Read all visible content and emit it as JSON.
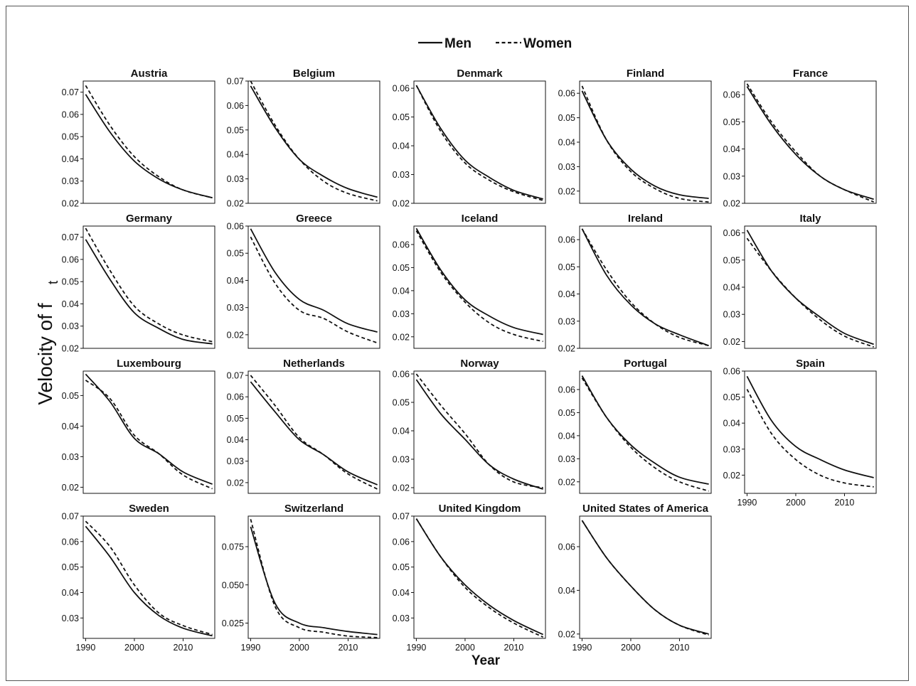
{
  "legend": {
    "men_label": "Men",
    "women_label": "Women"
  },
  "axis": {
    "xlabel": "Year",
    "ylabel_main": "Velocity of f",
    "ylabel_sub": "t"
  },
  "chart_data": {
    "type": "line",
    "grid": false,
    "legend_position": "top-center",
    "x_ticks": [
      1990,
      2000,
      2010
    ],
    "xlim": [
      1989.5,
      2016.5
    ],
    "series_names": [
      "Men",
      "Women"
    ],
    "panels": [
      {
        "title": "Austria",
        "ylim": [
          0.02,
          0.075
        ],
        "yticks": [
          "0.02",
          "0.03",
          "0.04",
          "0.05",
          "0.06",
          "0.07"
        ],
        "men": [
          [
            1990,
            0.069
          ],
          [
            1995,
            0.052
          ],
          [
            2000,
            0.039
          ],
          [
            2005,
            0.031
          ],
          [
            2010,
            0.026
          ],
          [
            2016,
            0.0225
          ]
        ],
        "women": [
          [
            1990,
            0.073
          ],
          [
            1995,
            0.055
          ],
          [
            2000,
            0.041
          ],
          [
            2005,
            0.032
          ],
          [
            2010,
            0.026
          ],
          [
            2016,
            0.0225
          ]
        ]
      },
      {
        "title": "Belgium",
        "ylim": [
          0.02,
          0.07
        ],
        "yticks": [
          "0.02",
          "0.03",
          "0.04",
          "0.05",
          "0.06",
          "0.07"
        ],
        "men": [
          [
            1990,
            0.068
          ],
          [
            1995,
            0.051
          ],
          [
            2000,
            0.038
          ],
          [
            2005,
            0.031
          ],
          [
            2010,
            0.026
          ],
          [
            2016,
            0.0225
          ]
        ],
        "women": [
          [
            1990,
            0.07
          ],
          [
            1995,
            0.052
          ],
          [
            2000,
            0.038
          ],
          [
            2005,
            0.029
          ],
          [
            2010,
            0.024
          ],
          [
            2016,
            0.021
          ]
        ]
      },
      {
        "title": "Denmark",
        "ylim": [
          0.02,
          0.0625
        ],
        "yticks": [
          "0.02",
          "0.03",
          "0.04",
          "0.05",
          "0.06"
        ],
        "men": [
          [
            1990,
            0.061
          ],
          [
            1995,
            0.046
          ],
          [
            2000,
            0.035
          ],
          [
            2005,
            0.029
          ],
          [
            2010,
            0.0245
          ],
          [
            2016,
            0.0215
          ]
        ],
        "women": [
          [
            1990,
            0.061
          ],
          [
            1995,
            0.045
          ],
          [
            2000,
            0.034
          ],
          [
            2005,
            0.028
          ],
          [
            2010,
            0.024
          ],
          [
            2016,
            0.021
          ]
        ]
      },
      {
        "title": "Finland",
        "ylim": [
          0.015,
          0.065
        ],
        "yticks": [
          "0.02",
          "0.03",
          "0.04",
          "0.05",
          "0.06"
        ],
        "men": [
          [
            1990,
            0.061
          ],
          [
            1995,
            0.041
          ],
          [
            2000,
            0.029
          ],
          [
            2005,
            0.022
          ],
          [
            2010,
            0.0185
          ],
          [
            2016,
            0.017
          ]
        ],
        "women": [
          [
            1990,
            0.063
          ],
          [
            1995,
            0.041
          ],
          [
            2000,
            0.028
          ],
          [
            2005,
            0.021
          ],
          [
            2010,
            0.017
          ],
          [
            2016,
            0.0155
          ]
        ]
      },
      {
        "title": "France",
        "ylim": [
          0.02,
          0.065
        ],
        "yticks": [
          "0.02",
          "0.03",
          "0.04",
          "0.05",
          "0.06"
        ],
        "men": [
          [
            1990,
            0.063
          ],
          [
            1995,
            0.049
          ],
          [
            2000,
            0.038
          ],
          [
            2005,
            0.03
          ],
          [
            2010,
            0.025
          ],
          [
            2016,
            0.0215
          ]
        ],
        "women": [
          [
            1990,
            0.064
          ],
          [
            1995,
            0.05
          ],
          [
            2000,
            0.039
          ],
          [
            2005,
            0.03
          ],
          [
            2010,
            0.025
          ],
          [
            2016,
            0.0205
          ]
        ]
      },
      {
        "title": "Germany",
        "ylim": [
          0.02,
          0.075
        ],
        "yticks": [
          "0.02",
          "0.03",
          "0.04",
          "0.05",
          "0.06",
          "0.07"
        ],
        "men": [
          [
            1990,
            0.069
          ],
          [
            1995,
            0.051
          ],
          [
            2000,
            0.036
          ],
          [
            2005,
            0.029
          ],
          [
            2010,
            0.024
          ],
          [
            2016,
            0.022
          ]
        ],
        "women": [
          [
            1990,
            0.074
          ],
          [
            1995,
            0.055
          ],
          [
            2000,
            0.039
          ],
          [
            2005,
            0.031
          ],
          [
            2010,
            0.026
          ],
          [
            2016,
            0.023
          ]
        ]
      },
      {
        "title": "Greece",
        "ylim": [
          0.015,
          0.06
        ],
        "yticks": [
          "0.02",
          "0.03",
          "0.04",
          "0.05",
          "0.06"
        ],
        "men": [
          [
            1990,
            0.059
          ],
          [
            1995,
            0.043
          ],
          [
            2000,
            0.033
          ],
          [
            2005,
            0.029
          ],
          [
            2010,
            0.024
          ],
          [
            2016,
            0.021
          ]
        ],
        "women": [
          [
            1990,
            0.056
          ],
          [
            1995,
            0.039
          ],
          [
            2000,
            0.029
          ],
          [
            2005,
            0.026
          ],
          [
            2010,
            0.021
          ],
          [
            2016,
            0.017
          ]
        ]
      },
      {
        "title": "Iceland",
        "ylim": [
          0.015,
          0.068
        ],
        "yticks": [
          "0.02",
          "0.03",
          "0.04",
          "0.05",
          "0.06"
        ],
        "men": [
          [
            1990,
            0.067
          ],
          [
            1995,
            0.049
          ],
          [
            2000,
            0.036
          ],
          [
            2005,
            0.029
          ],
          [
            2010,
            0.024
          ],
          [
            2016,
            0.021
          ]
        ],
        "women": [
          [
            1990,
            0.066
          ],
          [
            1995,
            0.048
          ],
          [
            2000,
            0.035
          ],
          [
            2005,
            0.026
          ],
          [
            2010,
            0.021
          ],
          [
            2016,
            0.018
          ]
        ]
      },
      {
        "title": "Ireland",
        "ylim": [
          0.02,
          0.065
        ],
        "yticks": [
          "0.02",
          "0.03",
          "0.04",
          "0.05",
          "0.06"
        ],
        "men": [
          [
            1990,
            0.064
          ],
          [
            1995,
            0.047
          ],
          [
            2000,
            0.036
          ],
          [
            2005,
            0.029
          ],
          [
            2010,
            0.025
          ],
          [
            2016,
            0.021
          ]
        ],
        "women": [
          [
            1990,
            0.064
          ],
          [
            1995,
            0.049
          ],
          [
            2000,
            0.037
          ],
          [
            2005,
            0.029
          ],
          [
            2010,
            0.024
          ],
          [
            2016,
            0.021
          ]
        ]
      },
      {
        "title": "Italy",
        "ylim": [
          0.0175,
          0.0625
        ],
        "yticks": [
          "0.02",
          "0.03",
          "0.04",
          "0.05",
          "0.06"
        ],
        "men": [
          [
            1990,
            0.061
          ],
          [
            1995,
            0.046
          ],
          [
            2000,
            0.036
          ],
          [
            2005,
            0.029
          ],
          [
            2010,
            0.023
          ],
          [
            2016,
            0.019
          ]
        ],
        "women": [
          [
            1990,
            0.058
          ],
          [
            1995,
            0.046
          ],
          [
            2000,
            0.036
          ],
          [
            2005,
            0.028
          ],
          [
            2010,
            0.022
          ],
          [
            2016,
            0.018
          ]
        ]
      },
      {
        "title": "Luxembourg",
        "ylim": [
          0.018,
          0.058
        ],
        "yticks": [
          "0.02",
          "0.03",
          "0.04",
          "0.05"
        ],
        "men": [
          [
            1990,
            0.057
          ],
          [
            1995,
            0.048
          ],
          [
            2000,
            0.036
          ],
          [
            2005,
            0.031
          ],
          [
            2010,
            0.025
          ],
          [
            2016,
            0.021
          ]
        ],
        "women": [
          [
            1990,
            0.055
          ],
          [
            1995,
            0.049
          ],
          [
            2000,
            0.037
          ],
          [
            2005,
            0.031
          ],
          [
            2010,
            0.024
          ],
          [
            2016,
            0.0195
          ]
        ]
      },
      {
        "title": "Netherlands",
        "ylim": [
          0.015,
          0.072
        ],
        "yticks": [
          "0.02",
          "0.03",
          "0.04",
          "0.05",
          "0.06",
          "0.07"
        ],
        "men": [
          [
            1990,
            0.067
          ],
          [
            1995,
            0.053
          ],
          [
            2000,
            0.04
          ],
          [
            2005,
            0.033
          ],
          [
            2010,
            0.025
          ],
          [
            2016,
            0.019
          ]
        ],
        "women": [
          [
            1990,
            0.07
          ],
          [
            1995,
            0.056
          ],
          [
            2000,
            0.041
          ],
          [
            2005,
            0.033
          ],
          [
            2010,
            0.024
          ],
          [
            2016,
            0.017
          ]
        ]
      },
      {
        "title": "Norway",
        "ylim": [
          0.018,
          0.061
        ],
        "yticks": [
          "0.02",
          "0.03",
          "0.04",
          "0.05",
          "0.06"
        ],
        "men": [
          [
            1990,
            0.058
          ],
          [
            1995,
            0.046
          ],
          [
            2000,
            0.037
          ],
          [
            2005,
            0.028
          ],
          [
            2010,
            0.023
          ],
          [
            2016,
            0.0195
          ]
        ],
        "women": [
          [
            1990,
            0.06
          ],
          [
            1995,
            0.049
          ],
          [
            2000,
            0.039
          ],
          [
            2005,
            0.028
          ],
          [
            2010,
            0.022
          ],
          [
            2016,
            0.02
          ]
        ]
      },
      {
        "title": "Portugal",
        "ylim": [
          0.015,
          0.068
        ],
        "yticks": [
          "0.02",
          "0.03",
          "0.04",
          "0.05",
          "0.06"
        ],
        "men": [
          [
            1990,
            0.066
          ],
          [
            1995,
            0.048
          ],
          [
            2000,
            0.036
          ],
          [
            2005,
            0.028
          ],
          [
            2010,
            0.022
          ],
          [
            2016,
            0.019
          ]
        ],
        "women": [
          [
            1990,
            0.065
          ],
          [
            1995,
            0.048
          ],
          [
            2000,
            0.035
          ],
          [
            2005,
            0.026
          ],
          [
            2010,
            0.02
          ],
          [
            2016,
            0.016
          ]
        ]
      },
      {
        "title": "Spain",
        "ylim": [
          0.013,
          0.06
        ],
        "yticks": [
          "0.02",
          "0.03",
          "0.04",
          "0.05",
          "0.06"
        ],
        "men": [
          [
            1990,
            0.058
          ],
          [
            1995,
            0.041
          ],
          [
            2000,
            0.031
          ],
          [
            2005,
            0.026
          ],
          [
            2010,
            0.022
          ],
          [
            2016,
            0.019
          ]
        ],
        "women": [
          [
            1990,
            0.053
          ],
          [
            1995,
            0.036
          ],
          [
            2000,
            0.026
          ],
          [
            2005,
            0.02
          ],
          [
            2010,
            0.017
          ],
          [
            2016,
            0.0155
          ]
        ]
      },
      {
        "title": "Sweden",
        "ylim": [
          0.022,
          0.07
        ],
        "yticks": [
          "0.03",
          "0.04",
          "0.05",
          "0.06",
          "0.07"
        ],
        "men": [
          [
            1990,
            0.066
          ],
          [
            1995,
            0.054
          ],
          [
            2000,
            0.04
          ],
          [
            2005,
            0.031
          ],
          [
            2010,
            0.026
          ],
          [
            2016,
            0.023
          ]
        ],
        "women": [
          [
            1990,
            0.068
          ],
          [
            1995,
            0.058
          ],
          [
            2000,
            0.043
          ],
          [
            2005,
            0.032
          ],
          [
            2010,
            0.027
          ],
          [
            2016,
            0.0235
          ]
        ]
      },
      {
        "title": "Switzerland",
        "ylim": [
          0.015,
          0.095
        ],
        "yticks": [
          "0.025",
          "0.050",
          "0.075"
        ],
        "men": [
          [
            1990,
            0.088
          ],
          [
            1995,
            0.038
          ],
          [
            2000,
            0.025
          ],
          [
            2005,
            0.022
          ],
          [
            2010,
            0.0195
          ],
          [
            2016,
            0.0175
          ]
        ],
        "women": [
          [
            1990,
            0.093
          ],
          [
            1995,
            0.036
          ],
          [
            2000,
            0.022
          ],
          [
            2005,
            0.019
          ],
          [
            2010,
            0.0165
          ],
          [
            2016,
            0.0155
          ]
        ]
      },
      {
        "title": "United Kingdom",
        "ylim": [
          0.022,
          0.07
        ],
        "yticks": [
          "0.03",
          "0.04",
          "0.05",
          "0.06",
          "0.07"
        ],
        "men": [
          [
            1990,
            0.069
          ],
          [
            1995,
            0.054
          ],
          [
            2000,
            0.043
          ],
          [
            2005,
            0.035
          ],
          [
            2010,
            0.029
          ],
          [
            2016,
            0.0235
          ]
        ],
        "women": [
          [
            1990,
            0.069
          ],
          [
            1995,
            0.054
          ],
          [
            2000,
            0.042
          ],
          [
            2005,
            0.034
          ],
          [
            2010,
            0.028
          ],
          [
            2016,
            0.0225
          ]
        ]
      },
      {
        "title": "United States of America",
        "ylim": [
          0.018,
          0.074
        ],
        "yticks": [
          "0.02",
          "0.04",
          "0.06"
        ],
        "men": [
          [
            1990,
            0.072
          ],
          [
            1995,
            0.055
          ],
          [
            2000,
            0.042
          ],
          [
            2005,
            0.031
          ],
          [
            2010,
            0.024
          ],
          [
            2016,
            0.02
          ]
        ],
        "women": [
          [
            1990,
            0.072
          ],
          [
            1995,
            0.055
          ],
          [
            2000,
            0.042
          ],
          [
            2005,
            0.031
          ],
          [
            2010,
            0.024
          ],
          [
            2016,
            0.0195
          ]
        ]
      }
    ]
  }
}
